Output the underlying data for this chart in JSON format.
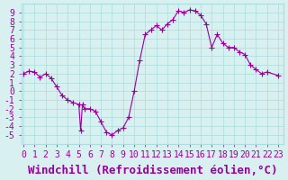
{
  "x": [
    0,
    0.5,
    1,
    1.5,
    2,
    2.5,
    3,
    3.5,
    4,
    4.5,
    5,
    5.17,
    5.33,
    5.5,
    6,
    6.5,
    7,
    7.5,
    8,
    8.5,
    9,
    9.5,
    10,
    10.5,
    11,
    11.5,
    12,
    12.5,
    13,
    13.5,
    14,
    14.5,
    15,
    15.5,
    16,
    16.5,
    17,
    17.5,
    18,
    18.5,
    19,
    19.5,
    20,
    20.5,
    21,
    21.5,
    22,
    23
  ],
  "y": [
    2,
    2.3,
    2.2,
    1.6,
    2.0,
    1.5,
    0.5,
    -0.5,
    -1.0,
    -1.3,
    -1.5,
    -4.5,
    -1.5,
    -2.0,
    -2.0,
    -2.3,
    -3.5,
    -4.7,
    -5.0,
    -4.5,
    -4.2,
    -3.0,
    0.0,
    3.5,
    6.5,
    7.0,
    7.5,
    7.0,
    7.7,
    8.2,
    9.2,
    9.0,
    9.3,
    9.2,
    8.7,
    7.7,
    5.0,
    6.5,
    5.5,
    5.0,
    5.0,
    4.5,
    4.2,
    3.0,
    2.5,
    2.0,
    2.2,
    1.8
  ],
  "line_color": "#990099",
  "marker": "+",
  "bg_color": "#d8f0f0",
  "grid_color": "#aadddd",
  "xlabel": "Windchill (Refroidissement éolien,°C)",
  "xlabel_color": "#990099",
  "xlabel_fontsize": 9,
  "xtick_labels": [
    "0",
    "1",
    "2",
    "3",
    "4",
    "5",
    "6",
    "7",
    "8",
    "9",
    "10",
    "11",
    "12",
    "13",
    "14",
    "15",
    "16",
    "17",
    "18",
    "19",
    "20",
    "21",
    "22",
    "23"
  ],
  "ytick_values": [
    -5,
    -4,
    -3,
    -2,
    -1,
    0,
    1,
    2,
    3,
    4,
    5,
    6,
    7,
    8,
    9
  ],
  "ylim": [
    -6,
    10
  ],
  "xlim": [
    -0.2,
    23.5
  ],
  "tick_color": "#990099",
  "tick_fontsize": 7
}
